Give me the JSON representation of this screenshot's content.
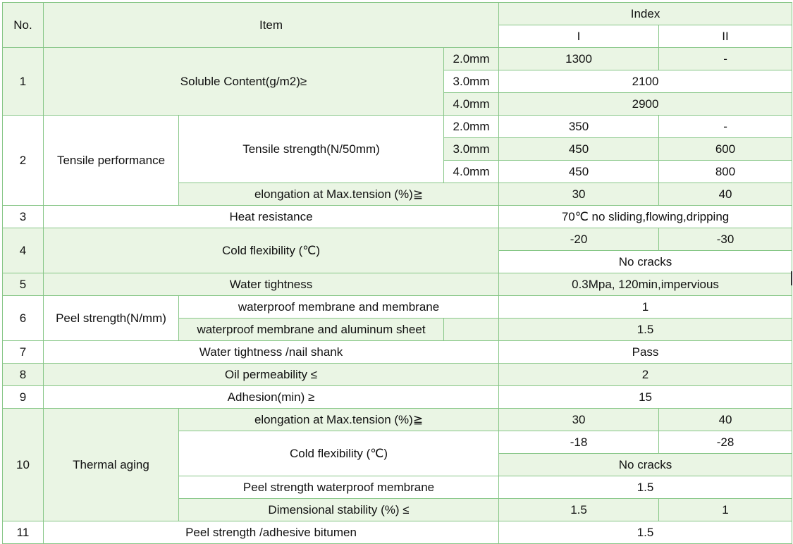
{
  "header": {
    "no": "No.",
    "item": "Item",
    "index": "Index",
    "grade_1": "I",
    "grade_2": "II"
  },
  "rows": {
    "r1": {
      "no": "1",
      "item": "Soluble Content(g/m2)≥",
      "t1": "2.0mm",
      "t1_v1": "1300",
      "t1_v2": "-",
      "t2": "3.0mm",
      "t2_v": "2100",
      "t3": "4.0mm",
      "t3_v": "2900"
    },
    "r2": {
      "no": "2",
      "item": "Tensile performance",
      "sub1": "Tensile strength(N/50mm)",
      "t1": "2.0mm",
      "t1_v1": "350",
      "t1_v2": "-",
      "t2": "3.0mm",
      "t2_v1": "450",
      "t2_v2": "600",
      "t3": "4.0mm",
      "t3_v1": "450",
      "t3_v2": "800",
      "sub2": "elongation at Max.tension (%)≧",
      "sub2_v1": "30",
      "sub2_v2": "40"
    },
    "r3": {
      "no": "3",
      "item": "Heat resistance",
      "value": "70℃  no sliding,flowing,dripping"
    },
    "r4": {
      "no": "4",
      "item": "Cold flexibility (℃)",
      "v1": "-20",
      "v2": "-30",
      "value": "No cracks"
    },
    "r5": {
      "no": "5",
      "item": "Water tightness",
      "value": "0.3Mpa, 120min,impervious"
    },
    "r6": {
      "no": "6",
      "item": "Peel strength(N/mm)",
      "sub1": "waterproof membrane and membrane",
      "sub1_v": "1",
      "sub2": "waterproof membrane and aluminum sheet",
      "sub2_v": "1.5"
    },
    "r7": {
      "no": "7",
      "item": "Water tightness /nail shank",
      "value": "Pass"
    },
    "r8": {
      "no": "8",
      "item": "Oil permeability ≤",
      "value": "2"
    },
    "r9": {
      "no": "9",
      "item": "Adhesion(min) ≥",
      "value": "15"
    },
    "r10": {
      "no": "10",
      "item": "Thermal aging",
      "sub1": "elongation at Max.tension (%)≧",
      "sub1_v1": "30",
      "sub1_v2": "40",
      "sub2": "Cold flexibility (℃)",
      "sub2_v1": "-18",
      "sub2_v2": "-28",
      "sub2_v": "No cracks",
      "sub3": "Peel strength waterproof membrane",
      "sub3_v": "1.5",
      "sub4": "Dimensional stability (%) ≤",
      "sub4_v1": "1.5",
      "sub4_v2": "1"
    },
    "r11": {
      "no": "11",
      "item": "Peel strength /adhesive bitumen",
      "value": "1.5"
    }
  }
}
